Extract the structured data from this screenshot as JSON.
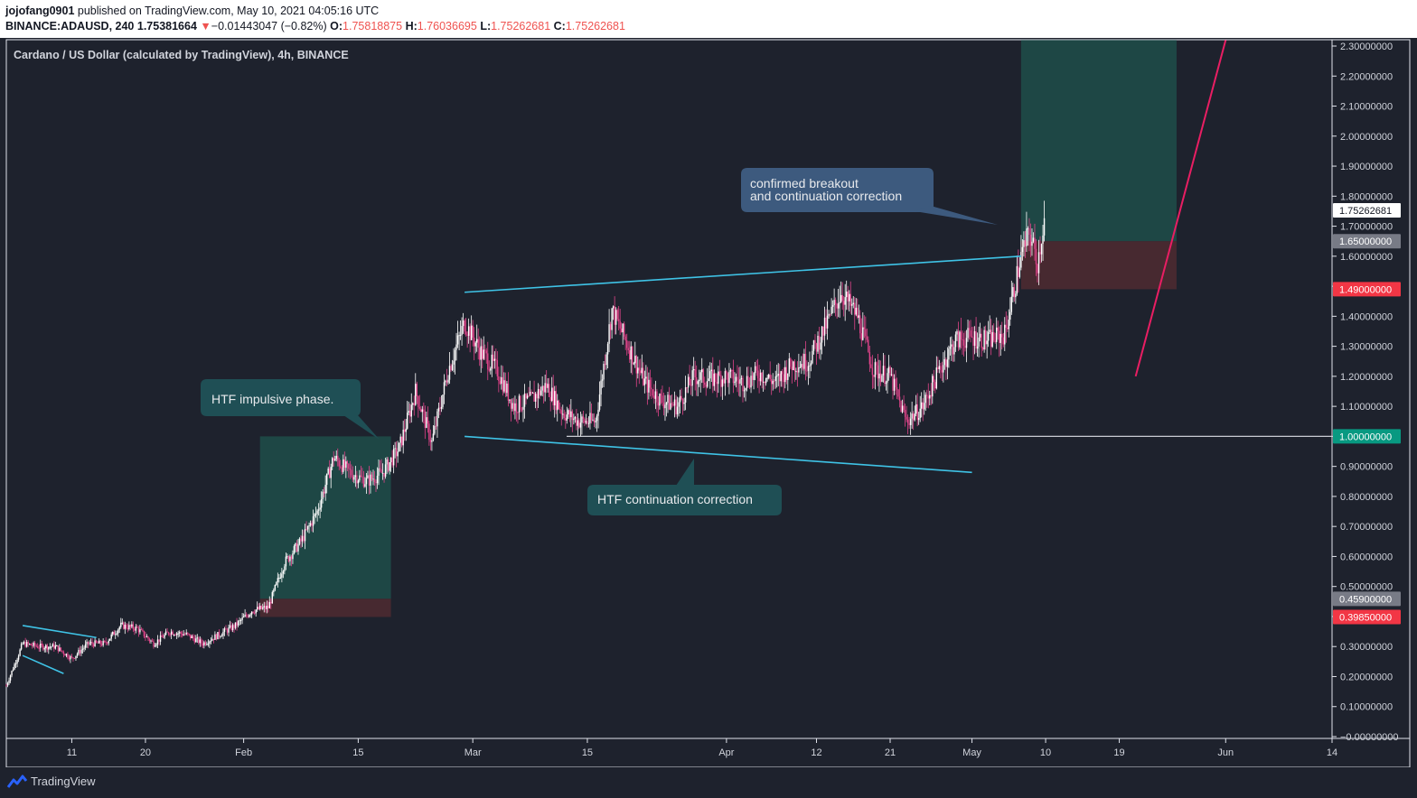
{
  "header": {
    "author": "jojofang0901",
    "published": " published on TradingView.com, May 10, 2021 04:05:16 UTC",
    "symbol": "BINANCE:ADAUSD, 240",
    "last": "1.75381664",
    "arrow": "▼",
    "change": "−0.01443047 (−0.82%)",
    "o_label": "O:",
    "o_value": "1.75818875",
    "h_label": "H:",
    "h_value": "1.76036695",
    "l_label": "L:",
    "l_value": "1.75262681",
    "c_label": "C:",
    "c_value": "1.75262681"
  },
  "footer": {
    "brand": "TradingView"
  },
  "colors": {
    "background": "#1e222d",
    "up": "#ffffff",
    "down": "#e0448a",
    "trendline": "#3fc3e6",
    "target_zone": "#1f4a47",
    "stop_zone": "#4a2a30",
    "forecast_line": "#e91e63"
  },
  "chart_data": {
    "type": "candlestick",
    "title": "Cardano / US Dollar (calculated by TradingView), 4h, BINANCE",
    "y_axis": {
      "range": [
        0,
        2.3
      ],
      "ticks": [
        "2.30000000",
        "2.20000000",
        "2.10000000",
        "2.00000000",
        "1.90000000",
        "1.80000000",
        "1.70000000",
        "1.60000000",
        "1.50000000",
        "1.40000000",
        "1.30000000",
        "1.20000000",
        "1.10000000",
        "1.00000000",
        "0.90000000",
        "0.80000000",
        "0.70000000",
        "0.60000000",
        "0.50000000",
        "0.40000000",
        "0.30000000",
        "0.20000000",
        "0.10000000",
        "−0.00000000"
      ]
    },
    "x_axis": {
      "start": "2021-01-03",
      "end": "2021-06-14",
      "ticks": [
        {
          "date": "2021-01-11",
          "label": "11"
        },
        {
          "date": "2021-01-20",
          "label": "20"
        },
        {
          "date": "2021-02-01",
          "label": "Feb"
        },
        {
          "date": "2021-02-15",
          "label": "15"
        },
        {
          "date": "2021-03-01",
          "label": "Mar"
        },
        {
          "date": "2021-03-15",
          "label": "15"
        },
        {
          "date": "2021-04-01",
          "label": "Apr"
        },
        {
          "date": "2021-04-12",
          "label": "12"
        },
        {
          "date": "2021-04-21",
          "label": "21"
        },
        {
          "date": "2021-05-01",
          "label": "May"
        },
        {
          "date": "2021-05-10",
          "label": "10"
        },
        {
          "date": "2021-05-19",
          "label": "19"
        },
        {
          "date": "2021-06-01",
          "label": "Jun"
        },
        {
          "date": "2021-06-14",
          "label": "14"
        }
      ]
    },
    "price_path": [
      [
        "2021-01-03",
        0.17
      ],
      [
        "2021-01-05",
        0.31
      ],
      [
        "2021-01-07",
        0.3
      ],
      [
        "2021-01-09",
        0.3
      ],
      [
        "2021-01-11",
        0.26
      ],
      [
        "2021-01-13",
        0.31
      ],
      [
        "2021-01-15",
        0.31
      ],
      [
        "2021-01-17",
        0.37
      ],
      [
        "2021-01-19",
        0.36
      ],
      [
        "2021-01-21",
        0.31
      ],
      [
        "2021-01-23",
        0.35
      ],
      [
        "2021-01-25",
        0.34
      ],
      [
        "2021-01-27",
        0.31
      ],
      [
        "2021-01-29",
        0.34
      ],
      [
        "2021-01-31",
        0.37
      ],
      [
        "2021-02-02",
        0.42
      ],
      [
        "2021-02-04",
        0.43
      ],
      [
        "2021-02-06",
        0.58
      ],
      [
        "2021-02-08",
        0.65
      ],
      [
        "2021-02-10",
        0.75
      ],
      [
        "2021-02-12",
        0.93
      ],
      [
        "2021-02-14",
        0.88
      ],
      [
        "2021-02-16",
        0.85
      ],
      [
        "2021-02-18",
        0.88
      ],
      [
        "2021-02-20",
        0.96
      ],
      [
        "2021-02-22",
        1.15
      ],
      [
        "2021-02-24",
        0.98
      ],
      [
        "2021-02-26",
        1.22
      ],
      [
        "2021-02-28",
        1.38
      ],
      [
        "2021-03-02",
        1.28
      ],
      [
        "2021-03-04",
        1.22
      ],
      [
        "2021-03-06",
        1.1
      ],
      [
        "2021-03-08",
        1.12
      ],
      [
        "2021-03-10",
        1.17
      ],
      [
        "2021-03-12",
        1.08
      ],
      [
        "2021-03-14",
        1.05
      ],
      [
        "2021-03-16",
        1.05
      ],
      [
        "2021-03-18",
        1.42
      ],
      [
        "2021-03-20",
        1.3
      ],
      [
        "2021-03-22",
        1.18
      ],
      [
        "2021-03-24",
        1.12
      ],
      [
        "2021-03-26",
        1.1
      ],
      [
        "2021-03-28",
        1.2
      ],
      [
        "2021-03-30",
        1.19
      ],
      [
        "2021-04-01",
        1.2
      ],
      [
        "2021-04-03",
        1.18
      ],
      [
        "2021-04-05",
        1.21
      ],
      [
        "2021-04-07",
        1.18
      ],
      [
        "2021-04-09",
        1.24
      ],
      [
        "2021-04-11",
        1.25
      ],
      [
        "2021-04-13",
        1.36
      ],
      [
        "2021-04-15",
        1.48
      ],
      [
        "2021-04-17",
        1.4
      ],
      [
        "2021-04-19",
        1.22
      ],
      [
        "2021-04-21",
        1.2
      ],
      [
        "2021-04-23",
        1.05
      ],
      [
        "2021-04-25",
        1.1
      ],
      [
        "2021-04-27",
        1.22
      ],
      [
        "2021-04-29",
        1.32
      ],
      [
        "2021-05-01",
        1.33
      ],
      [
        "2021-05-03",
        1.32
      ],
      [
        "2021-05-05",
        1.34
      ],
      [
        "2021-05-07",
        1.6
      ],
      [
        "2021-05-08",
        1.68
      ],
      [
        "2021-05-09",
        1.58
      ],
      [
        "2021-05-10",
        1.75
      ]
    ],
    "horizontal_line": {
      "price": 1.0,
      "label": "1.00000000"
    },
    "price_labels": [
      {
        "price": 1.75262681,
        "label": "1.75262681",
        "bg": "#ffffff",
        "fg": "#131722"
      },
      {
        "price": 1.65,
        "label": "1.65000000",
        "bg": "#787b86",
        "fg": "#ffffff"
      },
      {
        "price": 1.49,
        "label": "1.49000000",
        "bg": "#f23645",
        "fg": "#ffffff"
      },
      {
        "price": 1.0,
        "label": "1.00000000",
        "bg": "#089981",
        "fg": "#ffffff"
      },
      {
        "price": 0.459,
        "label": "0.45900000",
        "bg": "#787b86",
        "fg": "#ffffff"
      },
      {
        "price": 0.3985,
        "label": "0.39850000",
        "bg": "#f23645",
        "fg": "#ffffff"
      }
    ],
    "trendlines": [
      {
        "from": [
          "2021-02-28",
          1.48
        ],
        "to": [
          "2021-05-07",
          1.6
        ]
      },
      {
        "from": [
          "2021-02-28",
          1.0
        ],
        "to": [
          "2021-05-01",
          0.88
        ]
      },
      {
        "from": [
          "2021-01-05",
          0.37
        ],
        "to": [
          "2021-01-14",
          0.33
        ]
      },
      {
        "from": [
          "2021-01-05",
          0.27
        ],
        "to": [
          "2021-01-10",
          0.21
        ]
      }
    ],
    "positions": [
      {
        "start": "2021-02-03",
        "end": "2021-02-19",
        "entry": 0.459,
        "target": 1.0,
        "stop": 0.3985
      },
      {
        "start": "2021-05-07",
        "end": "2021-05-26",
        "entry": 1.65,
        "target": 2.32,
        "stop": 1.49
      }
    ],
    "forecast_line": {
      "from": [
        "2021-05-21",
        1.2
      ],
      "to": [
        "2021-06-01",
        2.32
      ]
    },
    "annotations": [
      {
        "text": "HTF impulsive phase."
      },
      {
        "text": "HTF continuation correction"
      },
      {
        "lines": [
          "confirmed breakout",
          "and continuation correction"
        ]
      }
    ]
  }
}
